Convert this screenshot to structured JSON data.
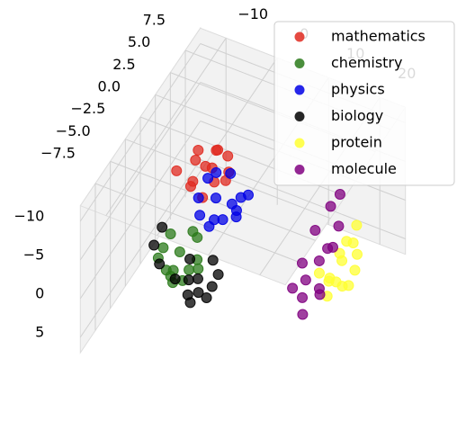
{
  "chart_data": {
    "type": "scatter3d",
    "xlim": [
      -15,
      25
    ],
    "ylim": [
      -10,
      10
    ],
    "zlim": [
      -12,
      7
    ],
    "xticks": [
      {
        "value": -10,
        "label": "−10"
      },
      0,
      10,
      20
    ],
    "yticks": [
      {
        "value": 7.5,
        "label": "7.5"
      },
      {
        "value": 5,
        "label": "5.0"
      },
      {
        "value": 2.5,
        "label": "2.5"
      },
      {
        "value": 0,
        "label": "0.0"
      },
      {
        "value": -2.5,
        "label": "−2.5"
      },
      {
        "value": -5,
        "label": "−5.0"
      },
      {
        "value": -7.5,
        "label": "−7.5"
      }
    ],
    "zticks": [
      {
        "value": -10,
        "label": "−10"
      },
      {
        "value": -5,
        "label": "−5"
      },
      0,
      5
    ],
    "grid": true,
    "legend": "upper right",
    "series": [
      {
        "name": "mathematics",
        "color": "#e02a20",
        "x": [
          -3,
          -6,
          -1,
          0,
          -5,
          -2,
          -4,
          1,
          -7,
          -3,
          2,
          -1,
          -5,
          0
        ],
        "y": [
          0.6,
          1.5,
          0,
          -0.5,
          0.2,
          1.8,
          -1,
          0.9,
          -0.8,
          2.4,
          0.2,
          -1.6,
          1.1,
          1.4
        ],
        "z": [
          -8,
          -7,
          -9,
          -8,
          -6,
          -9,
          -7,
          -10,
          -8,
          -8,
          -9,
          -7,
          -9,
          -6
        ]
      },
      {
        "name": "chemistry",
        "color": "#2a7a1a",
        "x": [
          -4.5,
          -7,
          -2,
          -5,
          -3,
          -8,
          -6,
          -1,
          -4,
          -2.5,
          -5.5,
          -3.5,
          -7.5,
          -1.5
        ],
        "y": [
          -2.4,
          -1.8,
          -3,
          -3.5,
          -1.5,
          -3,
          -2.2,
          -2.5,
          -4,
          -1.2,
          -3.8,
          -2.8,
          -2.6,
          -1.9
        ],
        "z": [
          0,
          -1,
          1,
          2,
          -2,
          1,
          3,
          0,
          2,
          -1,
          1,
          3,
          0,
          2
        ]
      },
      {
        "name": "physics",
        "color": "#0000e6",
        "x": [
          -0.5,
          2,
          -3,
          1,
          4,
          -2,
          0,
          3,
          -1,
          5,
          -4,
          1.5,
          2.5,
          -1.5
        ],
        "y": [
          0.2,
          -0.8,
          1,
          1.6,
          -0.2,
          -1.2,
          2.2,
          0.6,
          -0.5,
          0.9,
          0.3,
          -1.8,
          1.8,
          1.1
        ],
        "z": [
          -5,
          -4,
          -6,
          -3,
          -5,
          -4,
          -6,
          -3,
          -2,
          -6,
          -4,
          -5,
          -4,
          -7
        ]
      },
      {
        "name": "biology",
        "color": "#000000",
        "x": [
          -0.5,
          2,
          -3,
          1,
          -2,
          3,
          0,
          -4,
          1.5,
          -1,
          2.5,
          -9,
          -10,
          -8
        ],
        "y": [
          -2.8,
          -3.5,
          -2,
          -4,
          -3.2,
          -2.4,
          -4.5,
          -3.6,
          -2,
          -3.9,
          -3,
          -1.5,
          -2,
          -2.8
        ],
        "z": [
          2,
          3,
          1,
          2,
          4,
          1,
          3,
          2,
          0,
          1,
          2,
          -1,
          1,
          2
        ]
      },
      {
        "name": "protein",
        "color": "#ffff33",
        "x": [
          21.5,
          23,
          20,
          22,
          24,
          19,
          21,
          23.5,
          20.5,
          22.5,
          18.5,
          24.5,
          21,
          22
        ],
        "y": [
          2.4,
          3,
          1.5,
          1,
          2.8,
          2.5,
          3.6,
          1.8,
          0.8,
          4,
          1.2,
          2,
          2.9,
          1.6
        ],
        "z": [
          0,
          -2,
          2,
          1,
          -1,
          3,
          -1,
          2,
          3,
          -3,
          1,
          0,
          4,
          -2
        ]
      },
      {
        "name": "molecule",
        "color": "#800080",
        "x": [
          17.2,
          15,
          18.5,
          16,
          19,
          14,
          17,
          18,
          15.5,
          16.5,
          19.5,
          13.5,
          17.5,
          20
        ],
        "y": [
          2.3,
          3.5,
          1.2,
          0.5,
          4,
          2.2,
          -0.3,
          3,
          1.5,
          4.8,
          2.6,
          1,
          5.5,
          0
        ],
        "z": [
          1,
          -1,
          3,
          4,
          -2,
          2,
          5,
          0,
          3,
          -3,
          -1,
          4,
          -4,
          2
        ]
      }
    ]
  }
}
